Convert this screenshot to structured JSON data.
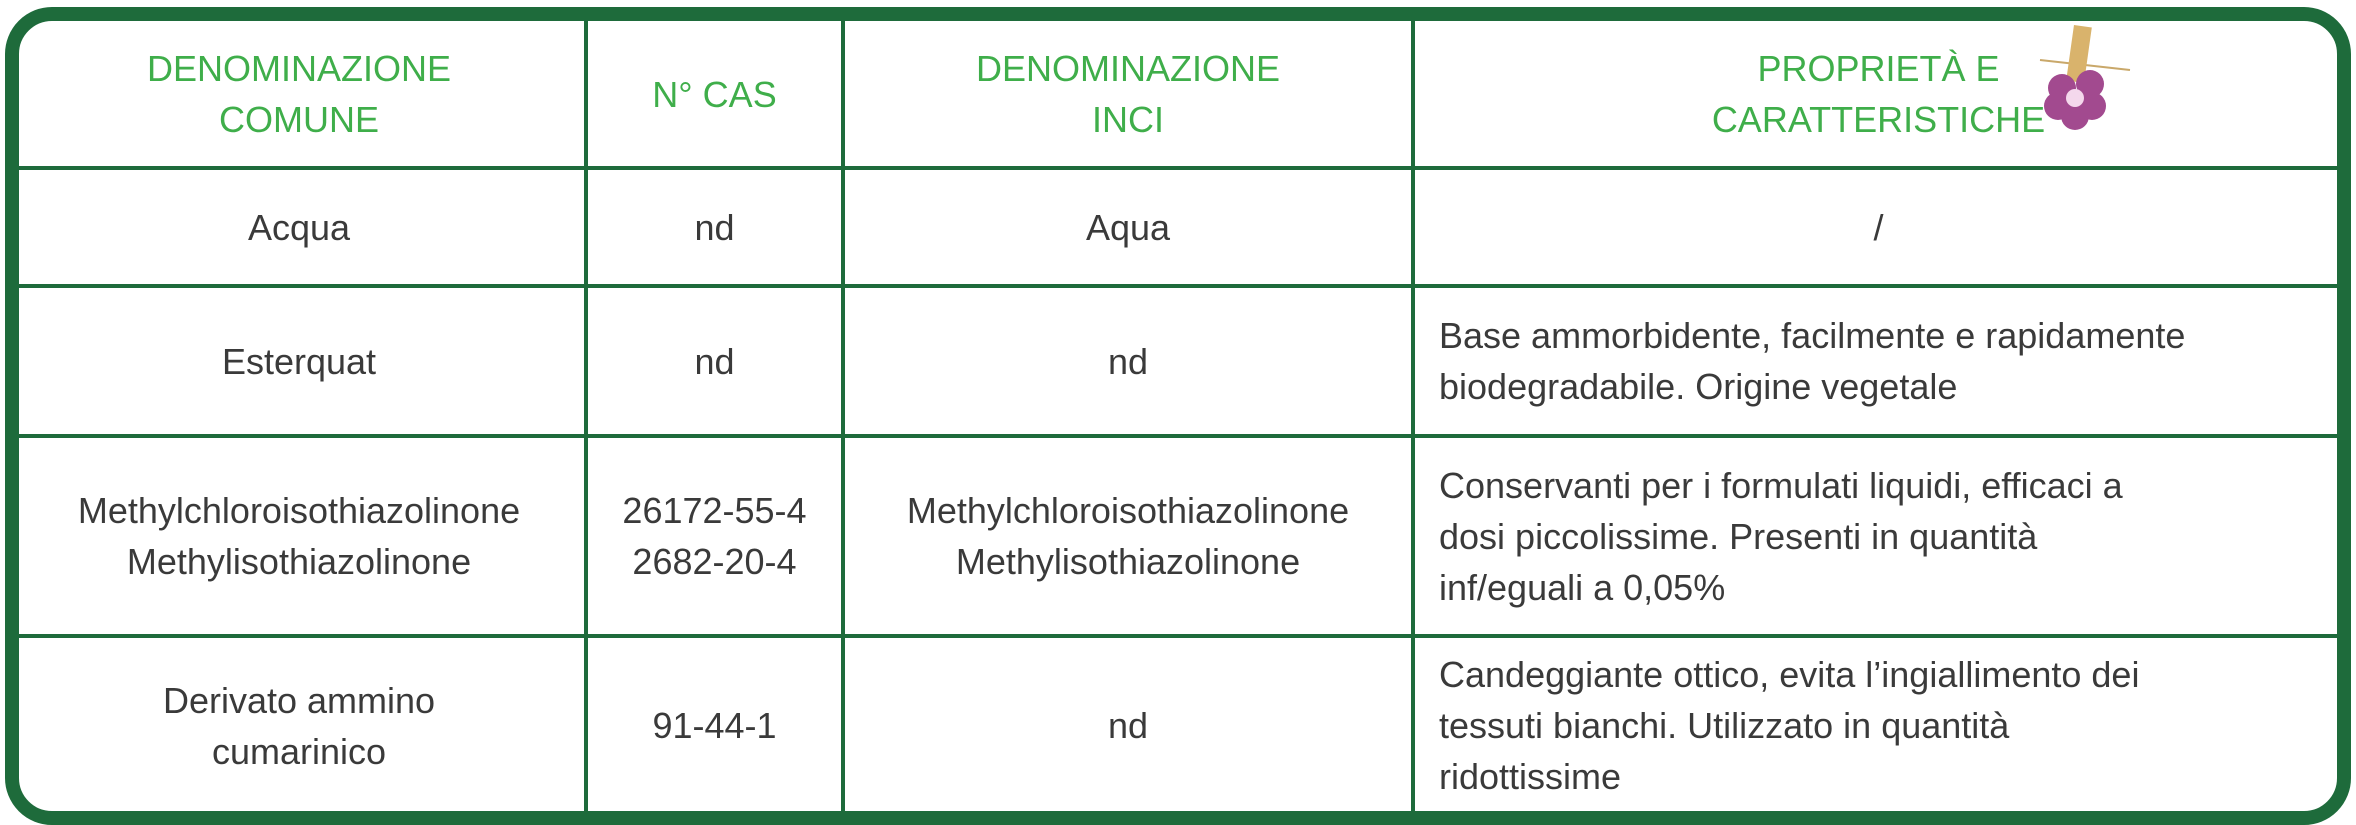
{
  "table": {
    "header": [
      [
        "DENOMINAZIONE",
        "COMUNE"
      ],
      [
        "N° CAS"
      ],
      [
        "DENOMINAZIONE",
        "INCI"
      ],
      [
        "PROPRIETÀ E",
        "CARATTERISTICHE"
      ]
    ],
    "rows": [
      [
        [
          "Acqua"
        ],
        [
          "nd"
        ],
        [
          "Aqua"
        ],
        [
          "/"
        ]
      ],
      [
        [
          "Esterquat"
        ],
        [
          "nd"
        ],
        [
          "nd"
        ],
        [
          "Base ammorbidente, facilmente e rapidamente",
          "biodegradabile. Origine vegetale"
        ]
      ],
      [
        [
          "Methylchloroisothiazolinone",
          "Methylisothiazolinone"
        ],
        [
          "26172-55-4",
          "2682-20-4"
        ],
        [
          "Methylchloroisothiazolinone",
          "Methylisothiazolinone"
        ],
        [
          "Conservanti per i formulati liquidi, efficaci a",
          "dosi piccolissime. Presenti in quantità",
          "inf/eguali a 0,05%"
        ]
      ],
      [
        [
          "Derivato ammino",
          "cumarinico"
        ],
        [
          "91-44-1"
        ],
        [
          "nd"
        ],
        [
          "Candeggiante ottico, evita l’ingiallimento dei",
          "tessuti bianchi. Utilizzato in quantità",
          "ridottissime"
        ]
      ]
    ]
  }
}
